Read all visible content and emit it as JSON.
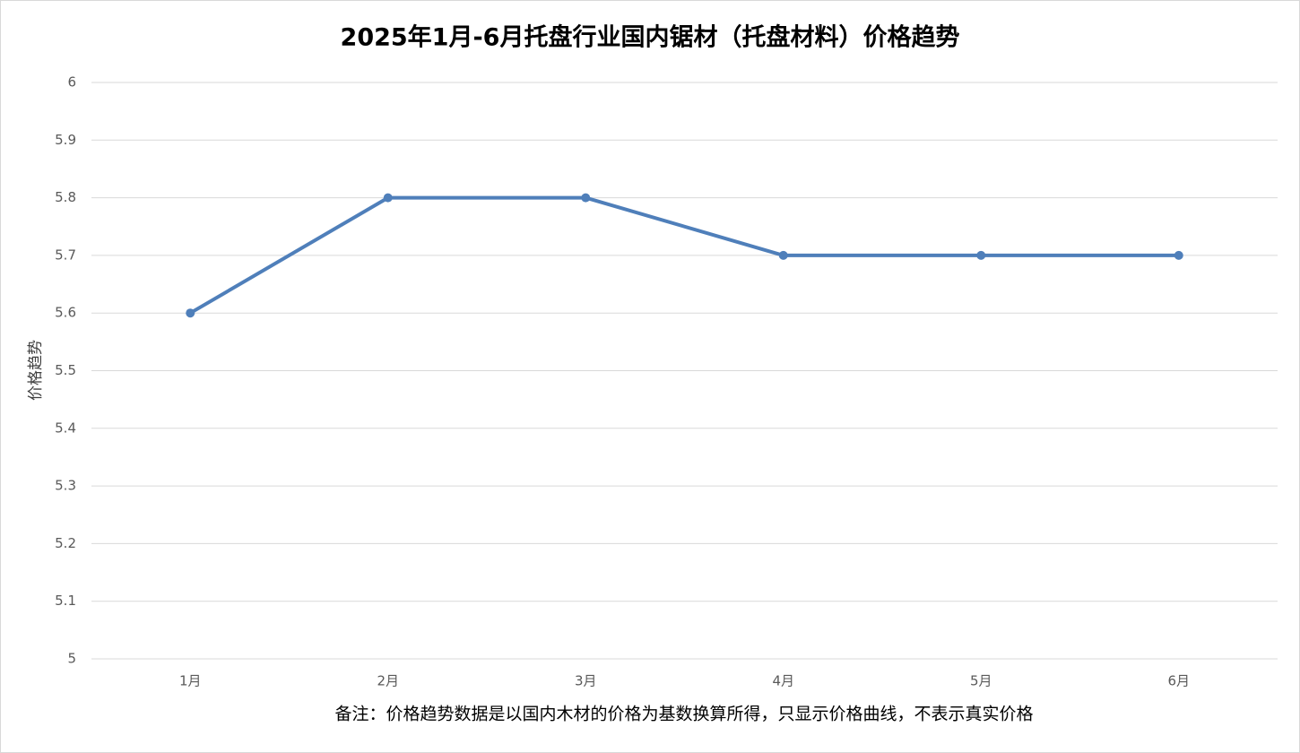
{
  "chart_data": {
    "type": "line",
    "title": "2025年1月-6月托盘行业国内锯材（托盘材料）价格趋势",
    "y_label": "价格趋势",
    "categories": [
      "1月",
      "2月",
      "3月",
      "4月",
      "5月",
      "6月"
    ],
    "series": [
      {
        "name": "价格趋势",
        "color": "#4f7fba",
        "values": [
          5.6,
          5.8,
          5.8,
          5.7,
          5.7,
          5.7
        ]
      }
    ],
    "ylim": [
      5,
      6
    ],
    "yticks": [
      5,
      5.1,
      5.2,
      5.3,
      5.4,
      5.5,
      5.6,
      5.7,
      5.8,
      5.9,
      6
    ],
    "grid": true,
    "annotation": "备注：价格趋势数据是以国内木材的价格为基数换算所得，只显示价格曲线，不表示真实价格"
  }
}
